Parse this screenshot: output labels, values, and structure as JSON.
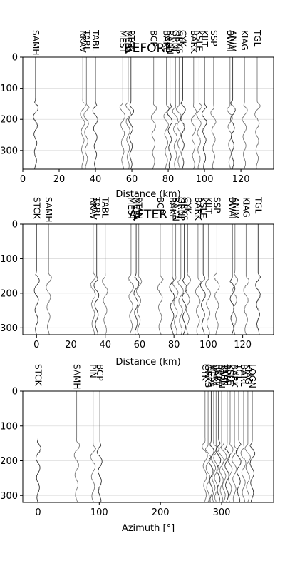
{
  "chart_data": [
    {
      "type": "line",
      "title": "BEFORE",
      "xlabel": "Distance (km)",
      "ylabel": "",
      "xlim": [
        0,
        138
      ],
      "ylim": [
        360,
        0
      ],
      "xticks": [
        0,
        20,
        40,
        60,
        80,
        100,
        120
      ],
      "yticks": [
        0,
        100,
        200,
        300
      ],
      "grid": "y",
      "stations": [
        {
          "name": "SAMH",
          "x": 7
        },
        {
          "name": "RKAV",
          "x": 33
        },
        {
          "name": "TARL",
          "x": 35
        },
        {
          "name": "TABL",
          "x": 40
        },
        {
          "name": "MEST",
          "x": 55
        },
        {
          "name": "MEPA",
          "x": 58
        },
        {
          "name": "RTAN",
          "x": 59.5
        },
        {
          "name": "BCP",
          "x": 72
        },
        {
          "name": "BAKE",
          "x": 79
        },
        {
          "name": "BAAN",
          "x": 81
        },
        {
          "name": "GRNJ",
          "x": 84
        },
        {
          "name": "GRKS",
          "x": 86
        },
        {
          "name": "CYK",
          "x": 88
        },
        {
          "name": "BARK",
          "x": 94
        },
        {
          "name": "KSLE",
          "x": 97
        },
        {
          "name": "KILT",
          "x": 100
        },
        {
          "name": "SSP",
          "x": 105
        },
        {
          "name": "BWAI",
          "x": 114
        },
        {
          "name": "ANIM",
          "x": 115.5
        },
        {
          "name": "KIAG",
          "x": 122
        },
        {
          "name": "TGL",
          "x": 129
        }
      ]
    },
    {
      "type": "line",
      "title": "AFTER",
      "xlabel": "Distance (km)",
      "ylabel": "",
      "xlim": [
        -8,
        138
      ],
      "ylim": [
        320,
        0
      ],
      "xticks": [
        0,
        20,
        40,
        60,
        80,
        100,
        120
      ],
      "yticks": [
        0,
        100,
        200,
        300
      ],
      "grid": "y",
      "stations": [
        {
          "name": "STCK",
          "x": 0
        },
        {
          "name": "SAMH",
          "x": 7
        },
        {
          "name": "RKAV",
          "x": 33
        },
        {
          "name": "TARL",
          "x": 35
        },
        {
          "name": "TABL",
          "x": 40
        },
        {
          "name": "MEST",
          "x": 55
        },
        {
          "name": "MEPA",
          "x": 58
        },
        {
          "name": "RTAN",
          "x": 59.5
        },
        {
          "name": "BCP",
          "x": 72
        },
        {
          "name": "BAKE",
          "x": 79
        },
        {
          "name": "BAAN",
          "x": 81
        },
        {
          "name": "GRNJ",
          "x": 84
        },
        {
          "name": "GRKS",
          "x": 86
        },
        {
          "name": "CYK",
          "x": 88
        },
        {
          "name": "BARK",
          "x": 94
        },
        {
          "name": "KSLE",
          "x": 97
        },
        {
          "name": "KILT",
          "x": 100
        },
        {
          "name": "SSP",
          "x": 105
        },
        {
          "name": "BWAI",
          "x": 114
        },
        {
          "name": "ANIM",
          "x": 115.5
        },
        {
          "name": "KIAG",
          "x": 122
        },
        {
          "name": "TGL",
          "x": 129
        }
      ]
    },
    {
      "type": "line",
      "title": "",
      "xlabel": "Azimuth [°]",
      "ylabel": "",
      "xlim": [
        -25,
        385
      ],
      "ylim": [
        320,
        0
      ],
      "xticks": [
        0,
        100,
        200,
        300
      ],
      "yticks": [
        0,
        100,
        200,
        300
      ],
      "grid": "y",
      "stations": [
        {
          "name": "STCK",
          "x": 0
        },
        {
          "name": "SAMH",
          "x": 63
        },
        {
          "name": "PIN",
          "x": 90
        },
        {
          "name": "BCP",
          "x": 101
        },
        {
          "name": "CYK",
          "x": 273
        },
        {
          "name": "GRKS",
          "x": 278
        },
        {
          "name": "MEPA",
          "x": 283
        },
        {
          "name": "MEST",
          "x": 287
        },
        {
          "name": "BAKE",
          "x": 291
        },
        {
          "name": "RKAV",
          "x": 295
        },
        {
          "name": "BAAN",
          "x": 300
        },
        {
          "name": "TABL",
          "x": 304
        },
        {
          "name": "BWAI",
          "x": 309
        },
        {
          "name": "KSLE",
          "x": 314
        },
        {
          "name": "BARK",
          "x": 321
        },
        {
          "name": "TGL",
          "x": 328
        },
        {
          "name": "BARL",
          "x": 336
        },
        {
          "name": "KIAG",
          "x": 343
        },
        {
          "name": "LOGN",
          "x": 350
        }
      ]
    }
  ]
}
